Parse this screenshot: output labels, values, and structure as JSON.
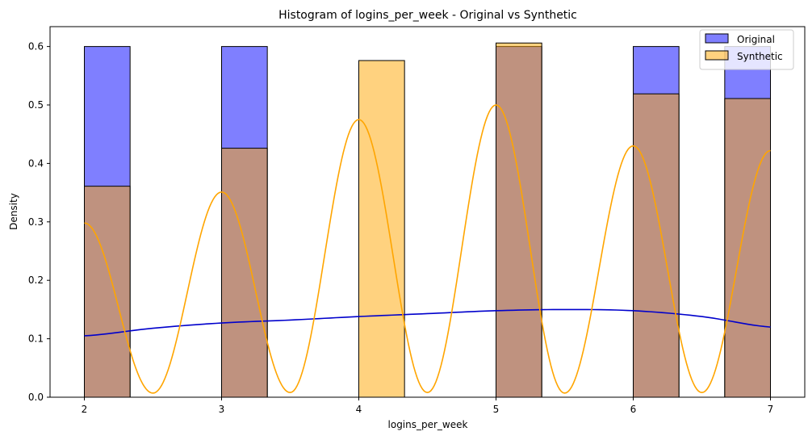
{
  "chart_data": {
    "type": "histogram",
    "title": "Histogram of logins_per_week - Original vs Synthetic",
    "xlabel": "logins_per_week",
    "ylabel": "Density",
    "xlim": [
      1.75,
      7.25
    ],
    "ylim": [
      0,
      0.634
    ],
    "xticks": [
      2,
      3,
      4,
      5,
      6,
      7
    ],
    "yticks": [
      0.0,
      0.1,
      0.2,
      0.3,
      0.4,
      0.5,
      0.6
    ],
    "legend_position": "top-right",
    "bin_width": 0.3333,
    "series": [
      {
        "name": "Original",
        "color": "#0000ff",
        "alpha": 0.5,
        "bins": [
          {
            "x0": 2.0,
            "density": 0.6
          },
          {
            "x0": 3.0,
            "density": 0.6
          },
          {
            "x0": 5.0,
            "density": 0.6
          },
          {
            "x0": 6.0,
            "density": 0.6
          },
          {
            "x0": 6.6667,
            "density": 0.6
          }
        ],
        "kde": {
          "color": "#0000cc",
          "x": [
            2.0,
            2.5,
            3.0,
            3.5,
            4.0,
            4.5,
            5.0,
            5.5,
            6.0,
            6.5,
            7.0
          ],
          "y": [
            0.105,
            0.118,
            0.127,
            0.132,
            0.138,
            0.143,
            0.148,
            0.15,
            0.148,
            0.138,
            0.12
          ]
        }
      },
      {
        "name": "Synthetic",
        "color": "#ffa500",
        "alpha": 0.5,
        "bins": [
          {
            "x0": 2.0,
            "density": 0.361
          },
          {
            "x0": 3.0,
            "density": 0.426
          },
          {
            "x0": 4.0,
            "density": 0.576
          },
          {
            "x0": 5.0,
            "density": 0.606
          },
          {
            "x0": 6.0,
            "density": 0.519
          },
          {
            "x0": 6.6667,
            "density": 0.511
          }
        ],
        "kde": {
          "color": "#ffa500",
          "peaks": [
            {
              "x": 2.0,
              "y": 0.298
            },
            {
              "x": 3.0,
              "y": 0.351
            },
            {
              "x": 4.0,
              "y": 0.475
            },
            {
              "x": 5.0,
              "y": 0.5
            },
            {
              "x": 6.0,
              "y": 0.43
            },
            {
              "x": 7.0,
              "y": 0.422
            }
          ],
          "troughs": [
            {
              "x": 2.5,
              "y": 0.007
            },
            {
              "x": 3.5,
              "y": 0.008
            },
            {
              "x": 4.5,
              "y": 0.008
            },
            {
              "x": 5.5,
              "y": 0.007
            },
            {
              "x": 6.5,
              "y": 0.008
            }
          ]
        }
      }
    ]
  }
}
